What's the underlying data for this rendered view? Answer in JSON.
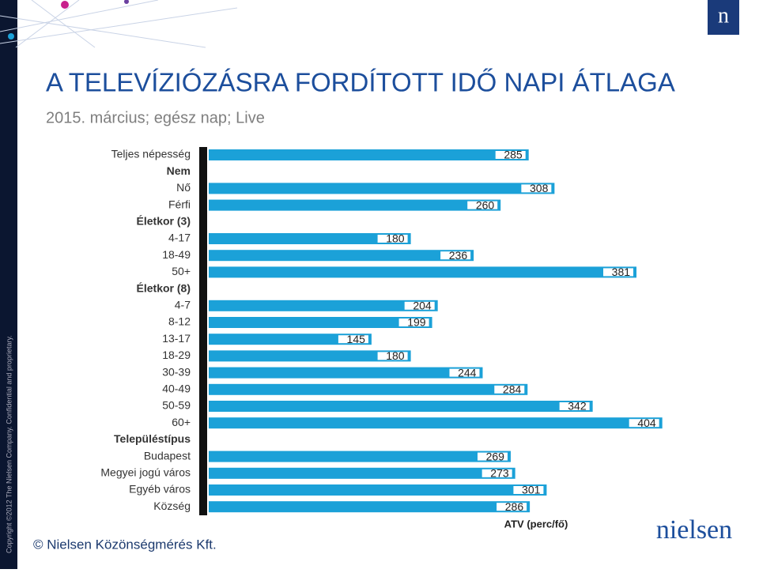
{
  "chart_data": {
    "type": "bar",
    "orientation": "horizontal",
    "title": "A TELEVÍZIÓZÁSRA FORDÍTOTT IDŐ NAPI ÁTLAGA",
    "subtitle": "2015. március; egész nap; Live",
    "x_label": "ATV (perc/fő)",
    "source": "© Nielsen Közönségmérés Kft.",
    "side_note": "Copyright ©2012 The Nielsen Company. Confidential and proprietary.",
    "logo": "nielsen",
    "logo_mark": "n",
    "color": "#1ba1d8",
    "categories": [
      "Teljes népesség",
      "Nem",
      "Nő",
      "Férfi",
      "Életkor (3)",
      "4-17",
      "18-49",
      "50+",
      "Életkor (8)",
      "4-7",
      "8-12",
      "13-17",
      "18-29",
      "30-39",
      "40-49",
      "50-59",
      "60+",
      "Településtípus",
      "Budapest",
      "Megyei jogú város",
      "Egyéb város",
      "Község"
    ],
    "values": [
      285,
      null,
      308,
      260,
      null,
      180,
      236,
      381,
      null,
      204,
      199,
      145,
      180,
      244,
      284,
      342,
      404,
      null,
      269,
      273,
      301,
      286
    ]
  }
}
